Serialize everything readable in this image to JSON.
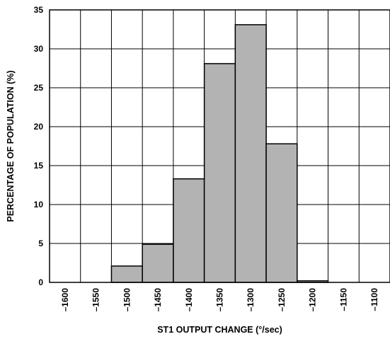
{
  "chart_data": {
    "type": "bar",
    "title": "",
    "xlabel": "ST1 OUTPUT CHANGE (°/sec)",
    "ylabel": "PERCENTAGE OF POPULATION (%)",
    "ylim": [
      0,
      35
    ],
    "xlim": [
      -1625,
      -1075
    ],
    "y_ticks": [
      "0",
      "5",
      "10",
      "15",
      "20",
      "25",
      "30",
      "35"
    ],
    "x_ticks": [
      "–1600",
      "–1550",
      "–1500",
      "–1450",
      "–1400",
      "–1350",
      "–1300",
      "–1250",
      "–1200",
      "–1150",
      "–1100"
    ],
    "bins": [
      {
        "from": -1525,
        "to": -1475,
        "value": 2.1
      },
      {
        "from": -1475,
        "to": -1425,
        "value": 4.9
      },
      {
        "from": -1425,
        "to": -1375,
        "value": 13.3
      },
      {
        "from": -1375,
        "to": -1325,
        "value": 28.1
      },
      {
        "from": -1325,
        "to": -1275,
        "value": 33.1
      },
      {
        "from": -1275,
        "to": -1225,
        "value": 17.8
      },
      {
        "from": -1225,
        "to": -1175,
        "value": 0.2
      }
    ],
    "grid": true,
    "bar_color": "#b3b3b3",
    "edge_color": "#000000"
  }
}
